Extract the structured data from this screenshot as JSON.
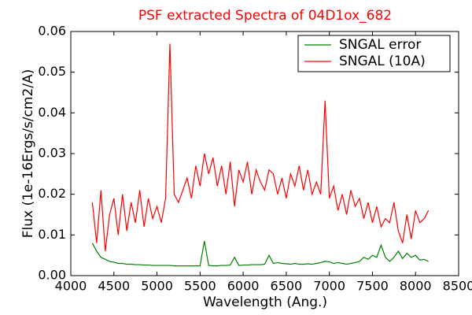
{
  "chart_data": {
    "type": "line",
    "title": "PSF extracted Spectra of 04D1ox_682",
    "xlabel": "Wavelength (Ang.)",
    "ylabel": "Flux (1e-16Ergs/s/cm2/A)",
    "x": [
      4250,
      4300,
      4350,
      4400,
      4450,
      4500,
      4550,
      4600,
      4650,
      4700,
      4750,
      4800,
      4850,
      4900,
      4950,
      5000,
      5050,
      5100,
      5150,
      5200,
      5250,
      5300,
      5350,
      5400,
      5450,
      5500,
      5550,
      5600,
      5650,
      5700,
      5750,
      5800,
      5850,
      5900,
      5950,
      6000,
      6050,
      6100,
      6150,
      6200,
      6250,
      6300,
      6350,
      6400,
      6450,
      6500,
      6550,
      6600,
      6650,
      6700,
      6750,
      6800,
      6850,
      6900,
      6950,
      7000,
      7050,
      7100,
      7150,
      7200,
      7250,
      7300,
      7350,
      7400,
      7450,
      7500,
      7550,
      7600,
      7650,
      7700,
      7750,
      7800,
      7850,
      7900,
      7950,
      8000,
      8050,
      8100,
      8150
    ],
    "series": [
      {
        "name": "SNGAL error",
        "color": "#008000",
        "values": [
          0.008,
          0.006,
          0.0045,
          0.004,
          0.0035,
          0.0033,
          0.003,
          0.003,
          0.0028,
          0.0028,
          0.0027,
          0.0027,
          0.0026,
          0.0026,
          0.0025,
          0.0025,
          0.0025,
          0.0025,
          0.0025,
          0.0024,
          0.0024,
          0.0024,
          0.0024,
          0.0024,
          0.0024,
          0.0024,
          0.0085,
          0.0025,
          0.0024,
          0.0024,
          0.0025,
          0.0025,
          0.0026,
          0.0045,
          0.0025,
          0.0026,
          0.0026,
          0.0027,
          0.0027,
          0.0027,
          0.0028,
          0.005,
          0.003,
          0.0032,
          0.003,
          0.0029,
          0.0028,
          0.003,
          0.0028,
          0.0028,
          0.0029,
          0.0028,
          0.003,
          0.0032,
          0.0035,
          0.0034,
          0.003,
          0.0032,
          0.003,
          0.0028,
          0.003,
          0.0032,
          0.0035,
          0.0045,
          0.004,
          0.005,
          0.0045,
          0.0075,
          0.0045,
          0.0035,
          0.0045,
          0.006,
          0.0042,
          0.0055,
          0.0045,
          0.005,
          0.0038,
          0.004,
          0.0035
        ]
      },
      {
        "name": "SNGAL (10A)",
        "color": "#ff0000",
        "values": [
          0.018,
          0.008,
          0.021,
          0.006,
          0.015,
          0.019,
          0.01,
          0.02,
          0.011,
          0.018,
          0.013,
          0.021,
          0.012,
          0.019,
          0.014,
          0.017,
          0.013,
          0.019,
          0.057,
          0.02,
          0.018,
          0.021,
          0.024,
          0.019,
          0.027,
          0.022,
          0.03,
          0.025,
          0.029,
          0.022,
          0.027,
          0.02,
          0.028,
          0.017,
          0.026,
          0.023,
          0.028,
          0.02,
          0.026,
          0.023,
          0.021,
          0.026,
          0.025,
          0.02,
          0.024,
          0.019,
          0.025,
          0.022,
          0.027,
          0.021,
          0.026,
          0.02,
          0.023,
          0.02,
          0.043,
          0.019,
          0.022,
          0.016,
          0.02,
          0.015,
          0.021,
          0.017,
          0.019,
          0.014,
          0.018,
          0.013,
          0.017,
          0.012,
          0.014,
          0.013,
          0.018,
          0.011,
          0.008,
          0.015,
          0.009,
          0.016,
          0.013,
          0.014,
          0.016
        ]
      }
    ],
    "xlim": [
      4000,
      8500
    ],
    "xticks": [
      4000,
      4500,
      5000,
      5500,
      6000,
      6500,
      7000,
      7500,
      8000,
      8500
    ],
    "ylim": [
      0,
      0.06
    ],
    "yticks": [
      {
        "value": 0,
        "label": "0.00"
      },
      0.01,
      0.02,
      0.03,
      0.04,
      0.05,
      0.06
    ],
    "legend": "upper right",
    "title_color": "#ff0000"
  }
}
